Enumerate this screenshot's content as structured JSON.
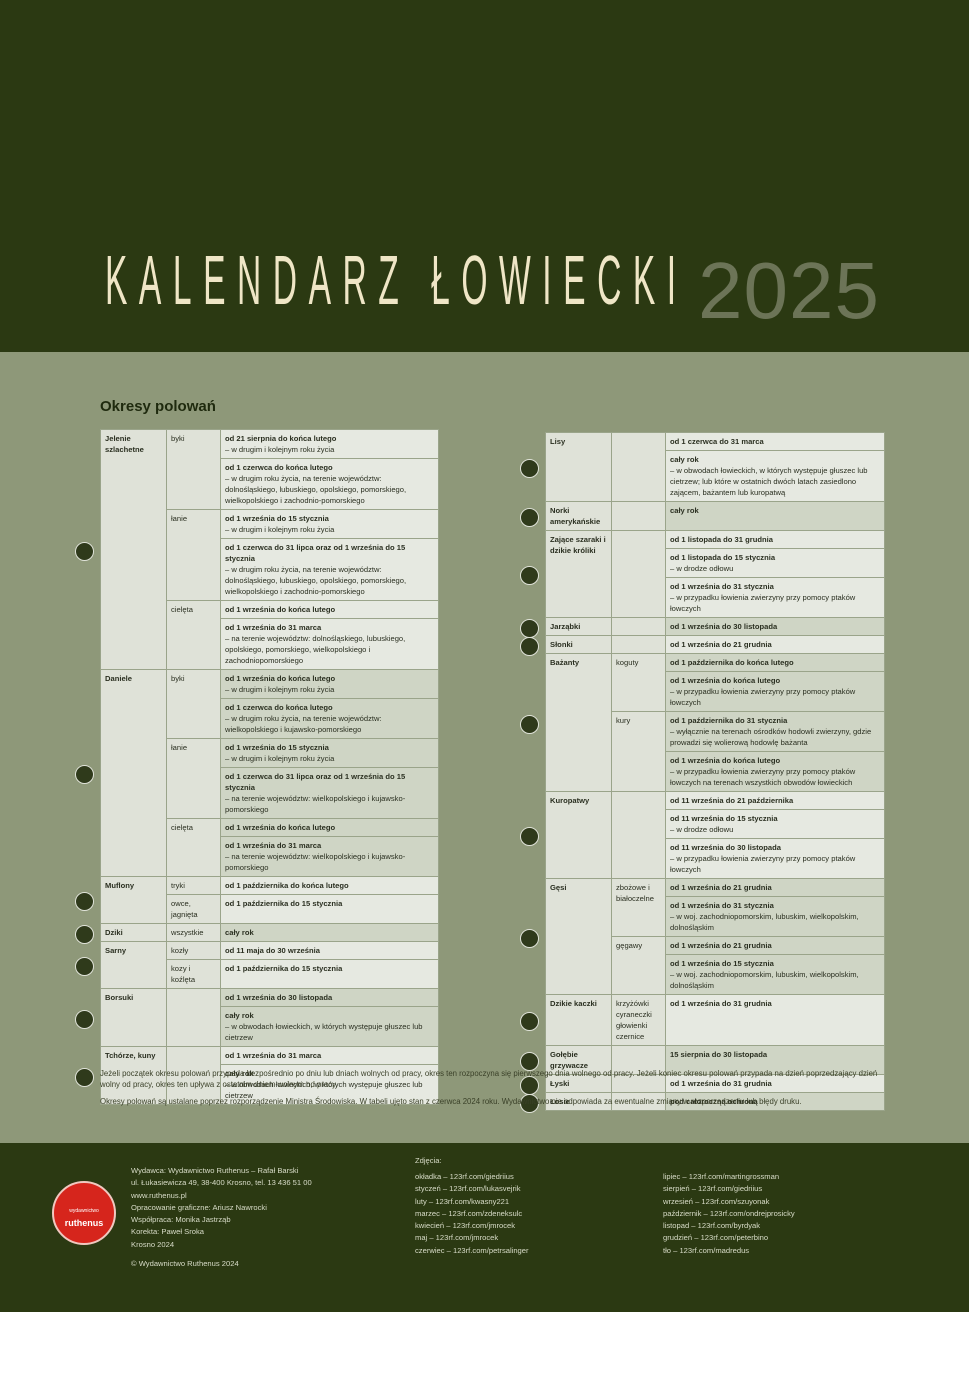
{
  "header": {
    "title": "KALENDARZ ŁOWIECKI",
    "year": "2025"
  },
  "section_title": "Okresy polowań",
  "left_table": [
    {
      "animal": "Jelenie szlachetne",
      "subs": [
        {
          "name": "byki",
          "periods": [
            {
              "period": "od 21 sierpnia do końca lutego",
              "note": "– w drugim i kolejnym roku życia"
            },
            {
              "period": "od 1 czerwca do końca lutego",
              "note": "– w drugim roku życia, na terenie województw: dolnośląskiego, lubuskiego, opolskiego, pomorskiego, wielkopolskiego i zachodnio-pomorskiego"
            }
          ]
        },
        {
          "name": "łanie",
          "periods": [
            {
              "period": "od 1 września do 15 stycznia",
              "note": "– w drugim i kolejnym roku życia"
            },
            {
              "period": "od 1 czerwca do 31 lipca oraz od 1 września do 15 stycznia",
              "note": "– w drugim roku życia, na terenie województw: dolnośląskiego, lubuskiego, opolskiego, pomorskiego, wielkopolskiego i zachodnio-pomorskiego"
            }
          ]
        },
        {
          "name": "cielęta",
          "periods": [
            {
              "period": "od 1 września do końca lutego"
            },
            {
              "period": "od 1 września do 31 marca",
              "note": "– na terenie województw: dolnośląskiego, lubuskiego, opolskiego, pomorskiego, wielkopolskiego i zachodniopomorskiego"
            }
          ]
        }
      ]
    },
    {
      "animal": "Daniele",
      "subs": [
        {
          "name": "byki",
          "periods": [
            {
              "period": "od 1 września do końca lutego",
              "note": "– w drugim i kolejnym roku życia"
            },
            {
              "period": "od 1 czerwca do końca lutego",
              "note": "– w drugim roku życia, na terenie województw: wielkopolskiego i kujawsko-pomorskiego"
            }
          ]
        },
        {
          "name": "łanie",
          "periods": [
            {
              "period": "od 1 września do 15 stycznia",
              "note": "– w drugim i kolejnym roku życia"
            },
            {
              "period": "od 1 czerwca do 31 lipca oraz od 1 września do 15 stycznia",
              "note": "– na terenie województw: wielkopolskiego i kujawsko-pomorskiego"
            }
          ]
        },
        {
          "name": "cielęta",
          "periods": [
            {
              "period": "od 1 września do końca lutego"
            },
            {
              "period": "od 1 września do 31 marca",
              "note": "– na terenie województw: wielkopolskiego i kujawsko-pomorskiego"
            }
          ]
        }
      ]
    },
    {
      "animal": "Muflony",
      "subs": [
        {
          "name": "tryki",
          "periods": [
            {
              "period": "od 1 października do końca lutego"
            }
          ]
        },
        {
          "name": "owce, jagnięta",
          "periods": [
            {
              "period": "od 1 października do 15 stycznia"
            }
          ]
        }
      ]
    },
    {
      "animal": "Dziki",
      "subs": [
        {
          "name": "wszystkie",
          "periods": [
            {
              "period": "cały rok"
            }
          ]
        }
      ]
    },
    {
      "animal": "Sarny",
      "subs": [
        {
          "name": "kozły",
          "periods": [
            {
              "period": "od 11 maja do 30 września"
            }
          ]
        },
        {
          "name": "kozy i koźlęta",
          "periods": [
            {
              "period": "od 1 października do 15 stycznia"
            }
          ]
        }
      ]
    },
    {
      "animal": "Borsuki",
      "subs": [
        {
          "periods": [
            {
              "period": "od 1 września do 30 listopada"
            },
            {
              "period": "cały rok",
              "note": "– w obwodach łowieckich, w których występuje głuszec lub cietrzew"
            }
          ]
        }
      ]
    },
    {
      "animal": "Tchórze, kuny",
      "subs": [
        {
          "periods": [
            {
              "period": "od 1 września do 31 marca"
            },
            {
              "period": "cały rok",
              "note": "– w obwodach łowieckich, w których występuje głuszec lub cietrzew"
            }
          ]
        }
      ]
    }
  ],
  "right_table": [
    {
      "animal": "Lisy",
      "subs": [
        {
          "periods": [
            {
              "period": "od 1 czerwca do 31 marca"
            },
            {
              "period": "cały rok",
              "note": "– w obwodach łowieckich, w których występuje głuszec lub cietrzew; lub które w ostatnich dwóch latach zasiedlono zającem, bażantem lub kuropatwą"
            }
          ]
        }
      ]
    },
    {
      "animal": "Norki amerykańskie",
      "subs": [
        {
          "periods": [
            {
              "period": "cały rok"
            }
          ]
        }
      ]
    },
    {
      "animal": "Zające szaraki i dzikie króliki",
      "subs": [
        {
          "periods": [
            {
              "period": "od 1 listopada do 31 grudnia"
            },
            {
              "period": "od 1 listopada do 15 stycznia",
              "note": "– w drodze odłowu"
            },
            {
              "period": "od 1 września do 31 stycznia",
              "note": "– w przypadku łowienia zwierzyny przy pomocy ptaków łowczych"
            }
          ]
        }
      ]
    },
    {
      "animal": "Jarząbki",
      "subs": [
        {
          "periods": [
            {
              "period": "od 1 września do 30 listopada"
            }
          ]
        }
      ]
    },
    {
      "animal": "Słonki",
      "subs": [
        {
          "periods": [
            {
              "period": "od 1 września do 21 grudnia"
            }
          ]
        }
      ]
    },
    {
      "animal": "Bażanty",
      "subs": [
        {
          "name": "koguty",
          "periods": [
            {
              "period": "od 1 października do końca lutego"
            },
            {
              "period": "od 1 września do końca lutego",
              "note": "– w przypadku łowienia zwierzyny przy pomocy ptaków łowczych"
            }
          ]
        },
        {
          "name": "kury",
          "periods": [
            {
              "period": "od 1 października do 31 stycznia",
              "note": "– wyłącznie na terenach ośrodków hodowli zwierzyny, gdzie prowadzi się wolierową hodowlę bażanta"
            },
            {
              "period": "od 1 września do końca lutego",
              "note": "– w przypadku łowienia zwierzyny przy pomocy ptaków łowczych na terenach wszystkich obwodów łowieckich"
            }
          ]
        }
      ]
    },
    {
      "animal": "Kuropatwy",
      "subs": [
        {
          "periods": [
            {
              "period": "od 11 września do 21 października"
            },
            {
              "period": "od 11 września do 15 stycznia",
              "note": "– w drodze odłowu"
            },
            {
              "period": "od 11 września do 30 listopada",
              "note": "– w przypadku łowienia zwierzyny przy pomocy ptaków łowczych"
            }
          ]
        }
      ]
    },
    {
      "animal": "Gęsi",
      "subs": [
        {
          "name": "zbożowe i białoczelne",
          "periods": [
            {
              "period": "od 1 września do 21 grudnia"
            },
            {
              "period": "od 1 września do 31 stycznia",
              "note": "– w woj. zachodniopomorskim, lubuskim, wielkopolskim, dolnośląskim"
            }
          ]
        },
        {
          "name": "gęgawy",
          "periods": [
            {
              "period": "od 1 września do 21 grudnia"
            },
            {
              "period": "od 1 września do 15 stycznia",
              "note": "– w woj. zachodniopomorskim, lubuskim, wielkopolskim, dolnośląskim"
            }
          ]
        }
      ]
    },
    {
      "animal": "Dzikie kaczki",
      "subs": [
        {
          "name": "krzyżówki cyraneczki głowienki czernice",
          "periods": [
            {
              "period": "od 1 września do 31 grudnia"
            }
          ]
        }
      ]
    },
    {
      "animal": "Gołębie grzywacze",
      "subs": [
        {
          "periods": [
            {
              "period": "15 sierpnia do 30 listopada"
            }
          ]
        }
      ]
    },
    {
      "animal": "Łyski",
      "subs": [
        {
          "periods": [
            {
              "period": "od 1 września do 31 grudnia"
            }
          ]
        }
      ]
    },
    {
      "animal": "Łosie",
      "subs": [
        {
          "periods": [
            {
              "period": "pod całoroczną ochroną"
            }
          ]
        }
      ]
    }
  ],
  "notes": [
    "Jeżeli początek okresu polowań przypada bezpośrednio po dniu lub dniach wolnych od pracy, okres ten rozpoczyna się pierwszego dnia wolnego od pracy. Jeżeli koniec okresu polowań przypada na dzień poprzedzający dzień wolny od pracy, okres ten upływa z ostatnim dniem wolnym od pracy.",
    "Okresy polowań są ustalane poprzez rozporządzenie Ministra Środowiska. W tabeli ujęto stan z czerwca 2024 roku. Wydawnictwo nie odpowiada za ewentualne zmiany w rozporządzeniu lub błędy druku."
  ],
  "footer": {
    "logo_top": "wydawnictwo",
    "logo_name": "ruthenus",
    "publisher": [
      "Wydawca: Wydawnictwo Ruthenus – Rafał Barski",
      "ul. Łukasiewicza 49, 38-400 Krosno, tel. 13 436 51 00",
      "www.ruthenus.pl",
      "Opracowanie graficzne: Ariusz Nawrocki",
      "Współpraca: Monika Jastrząb",
      "Korekta: Paweł Sroka",
      "Krosno 2024"
    ],
    "copyright": "© Wydawnictwo Ruthenus 2024",
    "photos_title": "Zdjęcia:",
    "photos_left": [
      "okładka – 123rf.com/giedriius",
      "styczeń – 123rf.com/lukasvejrik",
      "luty – 123rf.com/kwasny221",
      "marzec – 123rf.com/zdeneksulc",
      "kwiecień – 123rf.com/jmrocek",
      "maj – 123rf.com/jmrocek",
      "czerwiec – 123rf.com/petrsalinger"
    ],
    "photos_right": [
      "lipiec – 123rf.com/martingrossman",
      "sierpień – 123rf.com/giedriius",
      "wrzesień – 123rf.com/szuyonak",
      "październik – 123rf.com/ondrejprosicky",
      "listopad – 123rf.com/byrdyak",
      "grudzień – 123rf.com/peterbino",
      "tło – 123rf.com/madredus"
    ]
  }
}
